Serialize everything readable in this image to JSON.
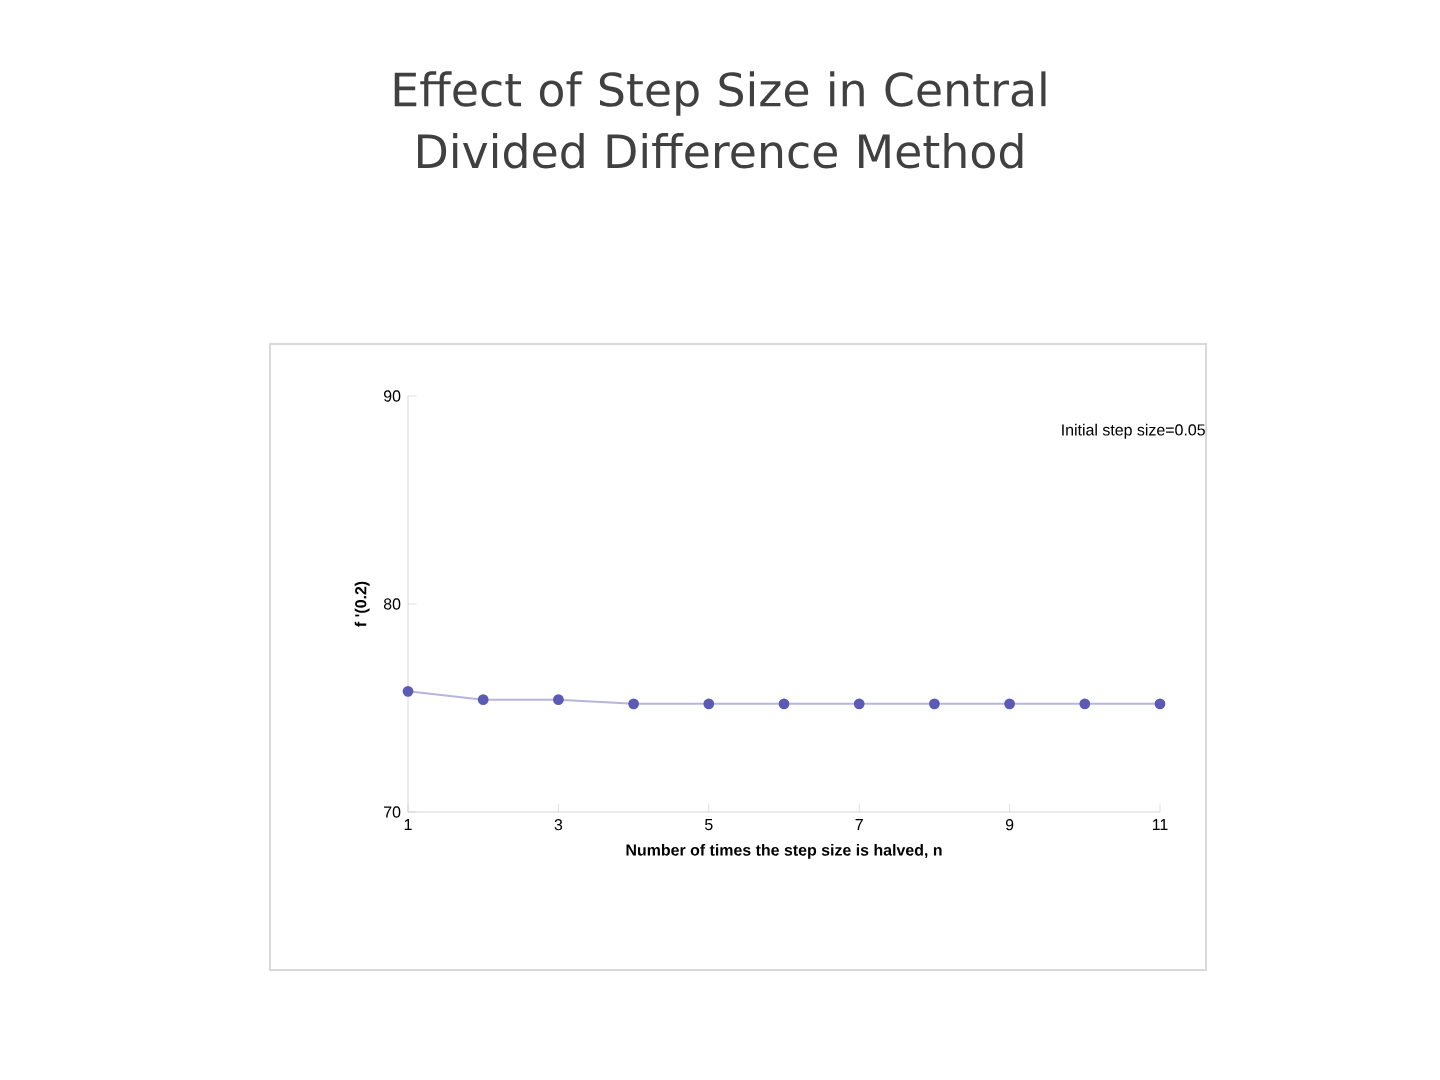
{
  "chart_data": {
    "type": "line",
    "title": "Effect of Step Size in Central Divided Difference Method",
    "xlabel": "Number of times the step size is halved, n",
    "ylabel": "f '(0.2)",
    "annotations": [
      "Initial step size=0.05"
    ],
    "x": [
      1,
      2,
      3,
      4,
      5,
      6,
      7,
      8,
      9,
      10,
      11
    ],
    "series": [
      {
        "color": "#5b5bb5",
        "values": [
          75.8,
          75.4,
          75.4,
          75.2,
          75.2,
          75.2,
          75.2,
          75.2,
          75.2,
          75.2,
          75.2
        ]
      }
    ],
    "xlim": [
      1,
      11
    ],
    "xticks": [
      1,
      3,
      5,
      7,
      9,
      11
    ],
    "ylim": [
      70,
      90
    ],
    "yticks": [
      70,
      80,
      90
    ],
    "marker": "circle",
    "line_style": "solid",
    "grid": false
  }
}
